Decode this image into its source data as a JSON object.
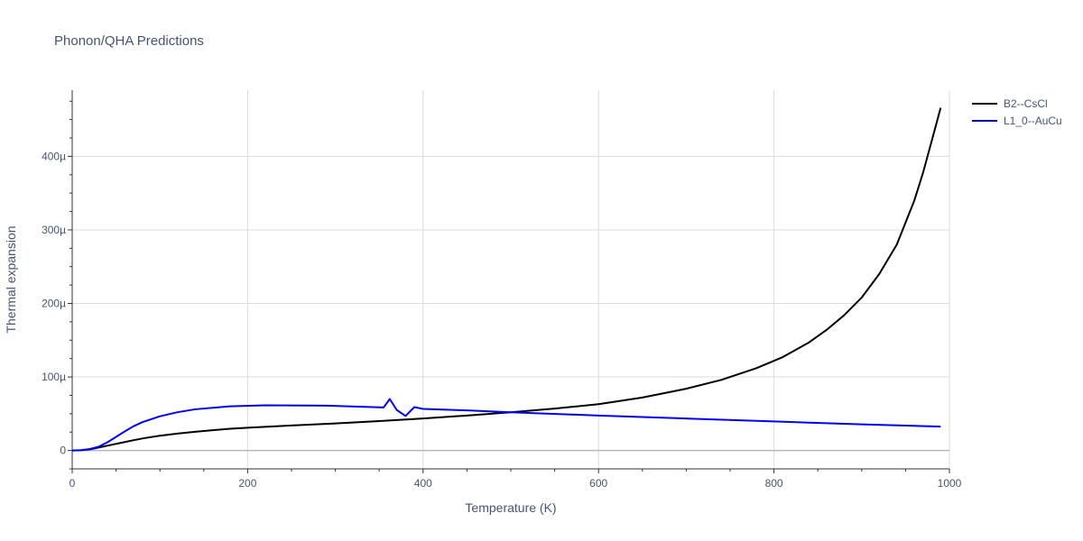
{
  "chart_data": {
    "type": "line",
    "title": "Phonon/QHA Predictions",
    "xlabel": "Temperature (K)",
    "ylabel": "Thermal expansion",
    "xlim": [
      0,
      1000
    ],
    "ylim": [
      -2.5e-05,
      0.00049
    ],
    "x_ticks": [
      0,
      200,
      400,
      600,
      800,
      1000
    ],
    "x_tick_labels": [
      "0",
      "200",
      "400",
      "600",
      "800",
      "1000"
    ],
    "y_ticks": [
      0,
      0.0001,
      0.0002,
      0.0003,
      0.0004
    ],
    "y_tick_labels": [
      "0",
      "100µ",
      "200µ",
      "300µ",
      "400µ"
    ],
    "grid": true,
    "legend_position": "top-right",
    "series": [
      {
        "name": "B2--CsCl",
        "color": "#000000",
        "x": [
          0,
          10,
          20,
          30,
          40,
          50,
          60,
          70,
          80,
          90,
          100,
          120,
          140,
          160,
          180,
          200,
          250,
          300,
          350,
          400,
          450,
          500,
          550,
          600,
          650,
          700,
          740,
          780,
          810,
          840,
          860,
          880,
          900,
          920,
          940,
          960,
          970,
          980,
          990
        ],
        "y": [
          0,
          3e-07,
          1.5e-06,
          4e-06,
          6.5e-06,
          9e-06,
          1.15e-05,
          1.4e-05,
          1.63e-05,
          1.83e-05,
          2e-05,
          2.3e-05,
          2.55e-05,
          2.75e-05,
          2.95e-05,
          3.1e-05,
          3.4e-05,
          3.68e-05,
          4e-05,
          4.35e-05,
          4.75e-05,
          5.2e-05,
          5.7e-05,
          6.3e-05,
          7.2e-05,
          8.4e-05,
          9.6e-05,
          0.000112,
          0.000127,
          0.000147,
          0.000164,
          0.000184,
          0.000208,
          0.00024,
          0.00028,
          0.00034,
          0.000378,
          0.000422,
          0.000466
        ]
      },
      {
        "name": "L1_0--AuCu",
        "color": "#0000ff",
        "x": [
          0,
          10,
          20,
          30,
          40,
          50,
          60,
          70,
          80,
          100,
          120,
          140,
          180,
          220,
          290,
          355,
          362,
          370,
          380,
          390,
          400,
          450,
          500,
          600,
          700,
          800,
          900,
          990
        ],
        "y": [
          0,
          5e-07,
          2e-06,
          5e-06,
          1.1e-05,
          1.85e-05,
          2.6e-05,
          3.3e-05,
          3.85e-05,
          4.65e-05,
          5.2e-05,
          5.6e-05,
          6e-05,
          6.15e-05,
          6.1e-05,
          5.85e-05,
          7e-05,
          5.5e-05,
          4.7e-05,
          5.9e-05,
          5.65e-05,
          5.45e-05,
          5.2e-05,
          4.75e-05,
          4.35e-05,
          3.95e-05,
          3.55e-05,
          3.25e-05
        ]
      }
    ]
  }
}
